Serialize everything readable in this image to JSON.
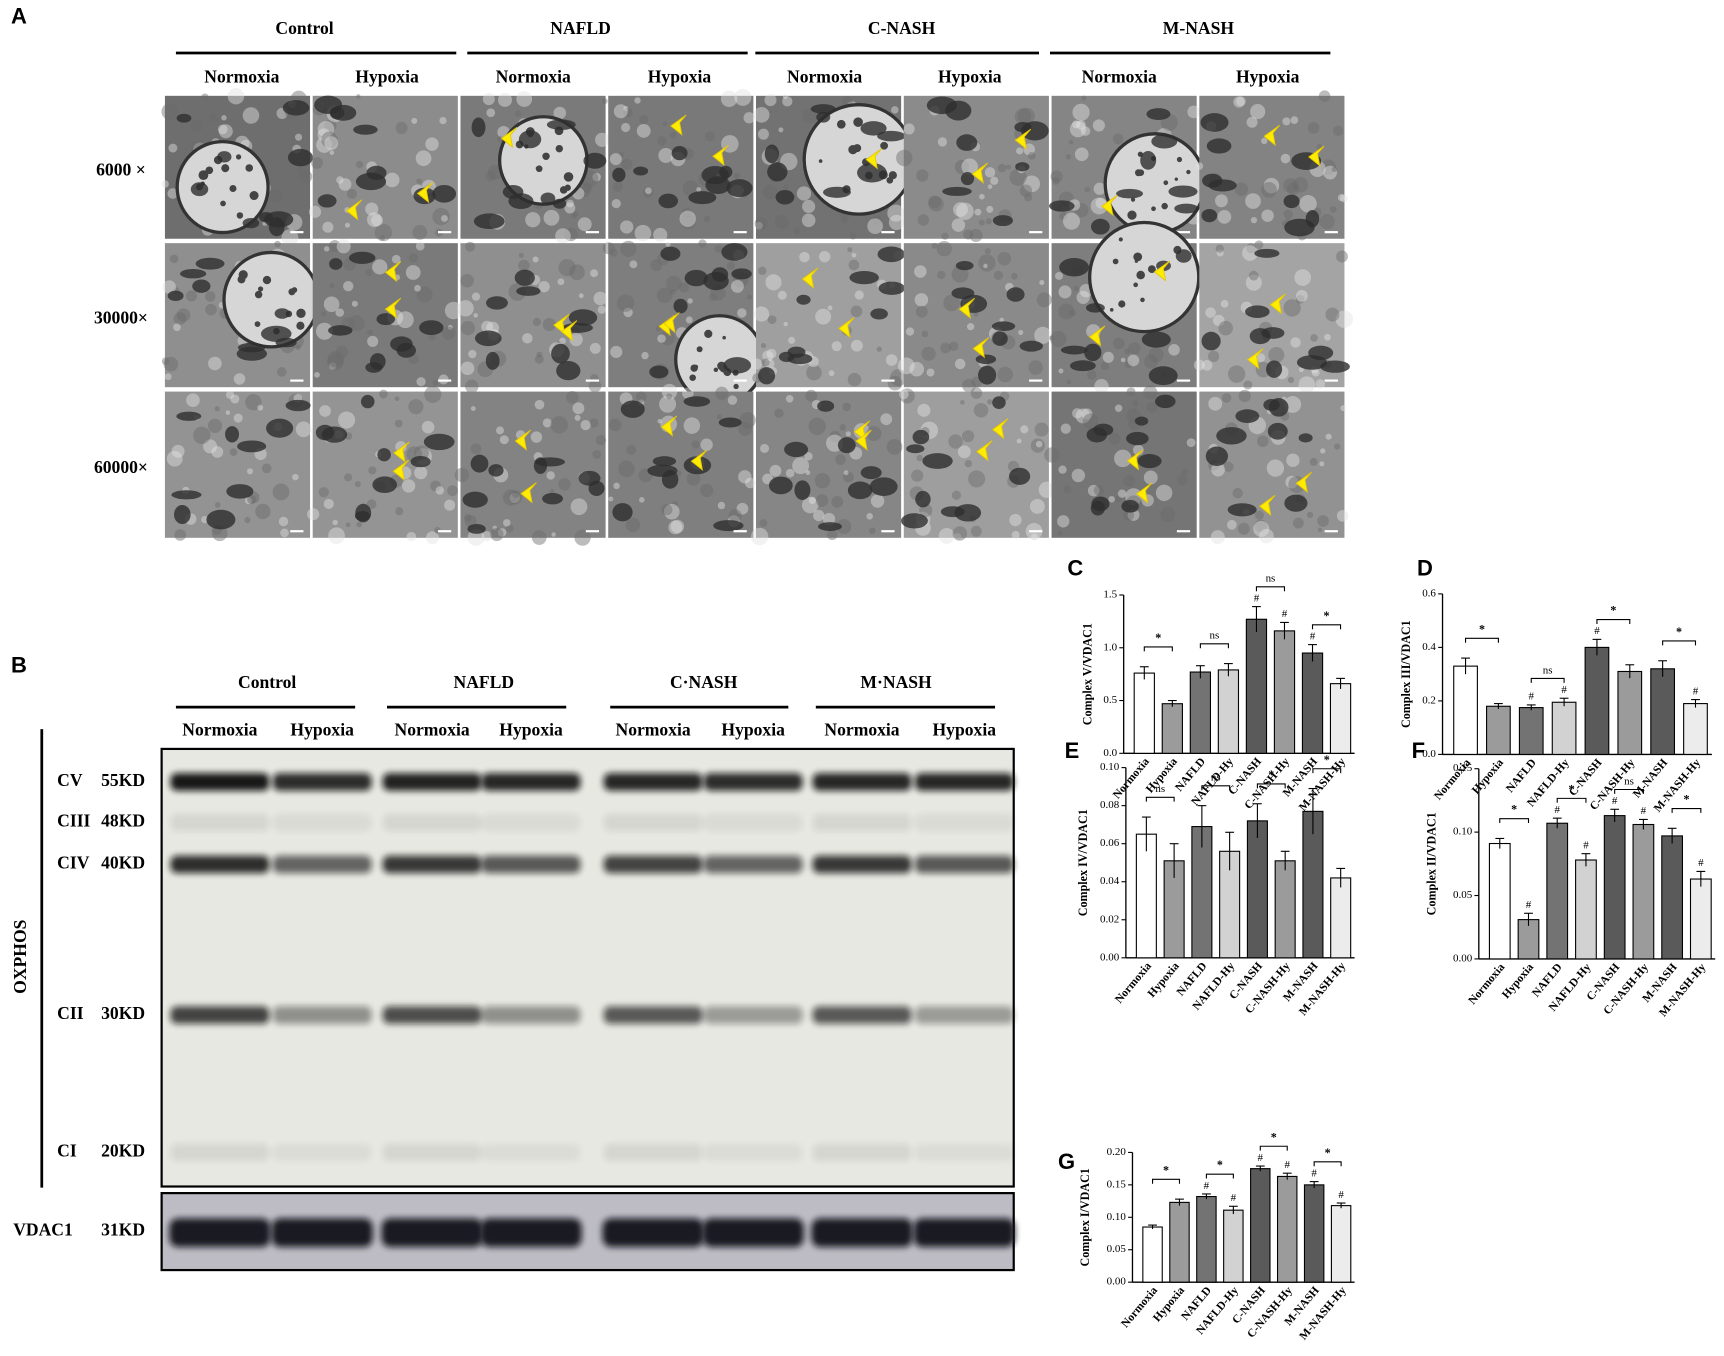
{
  "panel_a": {
    "label": "A",
    "groups": [
      "Control",
      "NAFLD",
      "C-NASH",
      "M-NASH"
    ],
    "conditions": [
      "Normoxia",
      "Hypoxia"
    ],
    "magnifications": [
      "6000 ×",
      "30000×",
      "60000×"
    ]
  },
  "panel_b": {
    "label": "B",
    "groups": [
      "Control",
      "NAFLD",
      "C·NASH",
      "M·NASH"
    ],
    "conditions": [
      "Normoxia",
      "Hypoxia"
    ],
    "bands": [
      {
        "complex": "CV",
        "size": "55KD"
      },
      {
        "complex": "CIII",
        "size": "48KD"
      },
      {
        "complex": "CIV",
        "size": "40KD"
      },
      {
        "complex": "CII",
        "size": "30KD"
      },
      {
        "complex": "CI",
        "size": "20KD"
      }
    ],
    "group_label": "OXPHOS",
    "loading": {
      "name": "VDAC1",
      "size": "31KD"
    }
  },
  "chart_data": [
    {
      "type": "bar",
      "label": "C",
      "ylabel": "Complex V/VDAC1",
      "categories": [
        "Normoxia",
        "Hypoxia",
        "NAFLD",
        "NAFLD-Hy",
        "C-NASH",
        "C-NASH-Hy",
        "M-NASH",
        "M-NASH-Hy"
      ],
      "values": [
        0.76,
        0.47,
        0.77,
        0.79,
        1.27,
        1.16,
        0.95,
        0.66
      ],
      "errors": [
        0.06,
        0.03,
        0.06,
        0.06,
        0.12,
        0.08,
        0.08,
        0.05
      ],
      "colors": [
        "#ffffff",
        "#9b9b9b",
        "#737373",
        "#d2d2d2",
        "#5a5a5a",
        "#9b9b9b",
        "#5a5a5a",
        "#ececec"
      ],
      "markers": [
        null,
        null,
        null,
        null,
        "#",
        "#",
        "#",
        null
      ],
      "comparisons": [
        {
          "from": "Normoxia",
          "to": "Hypoxia",
          "label": "*"
        },
        {
          "from": "NAFLD",
          "to": "NAFLD-Hy",
          "label": "ns"
        },
        {
          "from": "C-NASH",
          "to": "C-NASH-Hy",
          "label": "ns"
        },
        {
          "from": "M-NASH",
          "to": "M-NASH-Hy",
          "label": "*"
        }
      ],
      "ylim": [
        0,
        1.5
      ],
      "yticks": [
        {
          "value": 0,
          "label": "0.0"
        },
        0.5,
        {
          "value": 1,
          "label": "1.0"
        },
        1.5
      ]
    },
    {
      "type": "bar",
      "label": "D",
      "ylabel": "Complex III/VDAC1",
      "categories": [
        "Normoxia",
        "Hypoxia",
        "NAFLD",
        "NAFLD-Hy",
        "C-NASH",
        "C-NASH-Hy",
        "M-NASH",
        "M-NASH-Hy"
      ],
      "values": [
        0.33,
        0.18,
        0.175,
        0.195,
        0.4,
        0.31,
        0.32,
        0.19
      ],
      "errors": [
        0.03,
        0.01,
        0.01,
        0.015,
        0.03,
        0.025,
        0.03,
        0.015
      ],
      "colors": [
        "#ffffff",
        "#9b9b9b",
        "#737373",
        "#d2d2d2",
        "#5a5a5a",
        "#9b9b9b",
        "#5a5a5a",
        "#ececec"
      ],
      "markers": [
        null,
        null,
        "#",
        "#",
        "#",
        null,
        null,
        "#"
      ],
      "comparisons": [
        {
          "from": "Normoxia",
          "to": "Hypoxia",
          "label": "*"
        },
        {
          "from": "NAFLD",
          "to": "NAFLD-Hy",
          "label": "ns"
        },
        {
          "from": "C-NASH",
          "to": "C-NASH-Hy",
          "label": "*"
        },
        {
          "from": "M-NASH",
          "to": "M-NASH-Hy",
          "label": "*"
        }
      ],
      "ylim": [
        0,
        0.6
      ],
      "yticks": [
        {
          "value": 0,
          "label": "0.0"
        },
        0.2,
        0.4,
        0.6
      ]
    },
    {
      "type": "bar",
      "label": "E",
      "ylabel": "Complex IV/VDAC1",
      "categories": [
        "Normoxia",
        "Hypoxia",
        "NAFLD",
        "NAFLD-Hy",
        "C-NASH",
        "C-NASH-Hy",
        "M-NASH",
        "M-NASH-Hy"
      ],
      "values": [
        0.065,
        0.051,
        0.069,
        0.056,
        0.072,
        0.051,
        0.077,
        0.042
      ],
      "errors": [
        0.009,
        0.009,
        0.011,
        0.01,
        0.009,
        0.005,
        0.012,
        0.005
      ],
      "colors": [
        "#ffffff",
        "#9b9b9b",
        "#737373",
        "#d2d2d2",
        "#5a5a5a",
        "#9b9b9b",
        "#5a5a5a",
        "#ececec"
      ],
      "markers": [
        null,
        null,
        null,
        null,
        null,
        null,
        null,
        null
      ],
      "comparisons": [
        {
          "from": "Normoxia",
          "to": "Hypoxia",
          "label": "ns"
        },
        {
          "from": "NAFLD",
          "to": "NAFLD-Hy",
          "label": "ns"
        },
        {
          "from": "C-NASH",
          "to": "C-NASH-Hy",
          "label": "*"
        },
        {
          "from": "M-NASH",
          "to": "M-NASH-Hy",
          "label": "*"
        }
      ],
      "ylim": [
        0,
        0.1
      ],
      "yticks": [
        {
          "value": 0,
          "label": "0.00"
        },
        {
          "value": 0.02,
          "label": "0.02"
        },
        {
          "value": 0.04,
          "label": "0.04"
        },
        {
          "value": 0.06,
          "label": "0.06"
        },
        {
          "value": 0.08,
          "label": "0.08"
        },
        {
          "value": 0.1,
          "label": "0.10"
        }
      ]
    },
    {
      "type": "bar",
      "label": "F",
      "ylabel": "Complex II/VDAC1",
      "categories": [
        "Normoxia",
        "Hypoxia",
        "NAFLD",
        "NAFLD-Hy",
        "C-NASH",
        "C-NASH-Hy",
        "M-NASH",
        "M-NASH-Hy"
      ],
      "values": [
        0.091,
        0.031,
        0.107,
        0.078,
        0.113,
        0.106,
        0.097,
        0.063
      ],
      "errors": [
        0.004,
        0.005,
        0.004,
        0.005,
        0.005,
        0.004,
        0.006,
        0.006
      ],
      "colors": [
        "#ffffff",
        "#9b9b9b",
        "#737373",
        "#d2d2d2",
        "#5a5a5a",
        "#9b9b9b",
        "#5a5a5a",
        "#ececec"
      ],
      "markers": [
        null,
        "#",
        "#",
        "#",
        "#",
        "#",
        null,
        "#"
      ],
      "comparisons": [
        {
          "from": "Normoxia",
          "to": "Hypoxia",
          "label": "*"
        },
        {
          "from": "NAFLD",
          "to": "NAFLD-Hy",
          "label": "*"
        },
        {
          "from": "C-NASH",
          "to": "C-NASH-Hy",
          "label": "ns"
        },
        {
          "from": "M-NASH",
          "to": "M-NASH-Hy",
          "label": "*"
        }
      ],
      "ylim": [
        0,
        0.15
      ],
      "yticks": [
        {
          "value": 0,
          "label": "0.00"
        },
        0.05,
        {
          "value": 0.1,
          "label": "0.10"
        },
        0.15
      ]
    },
    {
      "type": "bar",
      "label": "G",
      "ylabel": "Complex I/VDAC1",
      "categories": [
        "Normoxia",
        "Hypoxia",
        "NAFLD",
        "NAFLD-Hy",
        "C-NASH",
        "C-NASH-Hy",
        "M-NASH",
        "M-NASH-Hy"
      ],
      "values": [
        0.085,
        0.123,
        0.132,
        0.111,
        0.175,
        0.163,
        0.15,
        0.118
      ],
      "errors": [
        0.003,
        0.005,
        0.004,
        0.006,
        0.004,
        0.005,
        0.005,
        0.004
      ],
      "colors": [
        "#ffffff",
        "#9b9b9b",
        "#737373",
        "#d2d2d2",
        "#5a5a5a",
        "#9b9b9b",
        "#5a5a5a",
        "#ececec"
      ],
      "markers": [
        null,
        null,
        "#",
        "#",
        "#",
        "#",
        "#",
        "#"
      ],
      "comparisons": [
        {
          "from": "Normoxia",
          "to": "Hypoxia",
          "label": "*"
        },
        {
          "from": "NAFLD",
          "to": "NAFLD-Hy",
          "label": "*"
        },
        {
          "from": "C-NASH",
          "to": "C-NASH-Hy",
          "label": "*"
        },
        {
          "from": "M-NASH",
          "to": "M-NASH-Hy",
          "label": "*"
        }
      ],
      "ylim": [
        0,
        0.2
      ],
      "yticks": [
        {
          "value": 0,
          "label": "0.00"
        },
        0.05,
        {
          "value": 0.1,
          "label": "0.10"
        },
        0.15,
        {
          "value": 0.2,
          "label": "0.20"
        }
      ]
    }
  ]
}
